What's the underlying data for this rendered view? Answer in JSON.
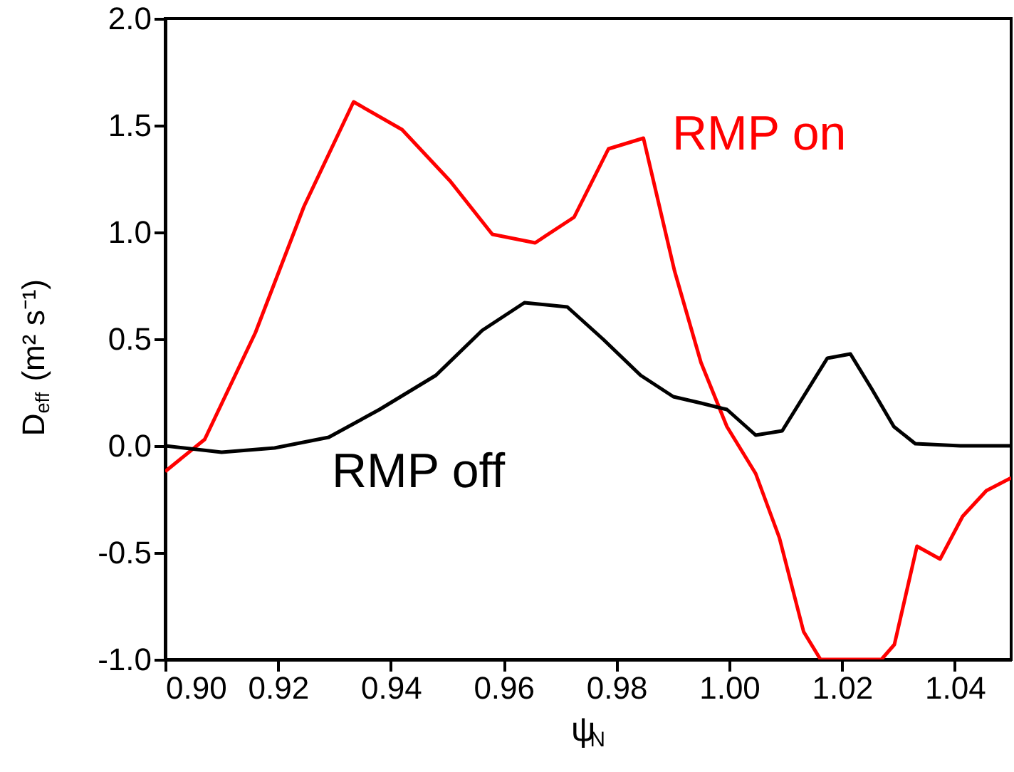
{
  "chart_data": {
    "type": "line",
    "xlabel": "ψ$_{N}$",
    "ylabel": "D$_{eff}$ (m² s⁻¹)",
    "xlim": [
      0.9,
      1.05
    ],
    "ylim": [
      -1.0,
      2.0
    ],
    "xticks": [
      {
        "value": 0.9,
        "label": "0.90"
      },
      {
        "value": 0.92,
        "label": "0.92"
      },
      {
        "value": 0.94,
        "label": "0.94"
      },
      {
        "value": 0.96,
        "label": "0.96"
      },
      {
        "value": 0.98,
        "label": "0.98"
      },
      {
        "value": 1.0,
        "label": "1.00"
      },
      {
        "value": 1.02,
        "label": "1.02"
      },
      {
        "value": 1.04,
        "label": "1.04"
      }
    ],
    "yticks": [
      {
        "value": -1.0,
        "label": "-1.0"
      },
      {
        "value": -0.5,
        "label": "-0.5"
      },
      {
        "value": 0.0,
        "label": "0.0"
      },
      {
        "value": 0.5,
        "label": "0.5"
      },
      {
        "value": 1.0,
        "label": "1.0"
      },
      {
        "value": 1.5,
        "label": "1.5"
      },
      {
        "value": 2.0,
        "label": "2.0"
      }
    ],
    "grid": false,
    "marker": "none",
    "line_style": "solid",
    "series": [
      {
        "color": "#ff0000",
        "x": [
          0.9,
          0.907,
          0.916,
          0.9246,
          0.9334,
          0.942,
          0.9505,
          0.958,
          0.9656,
          0.9725,
          0.9786,
          0.9848,
          0.9903,
          0.995,
          0.9996,
          1.0047,
          1.0089,
          1.0132,
          1.0162,
          1.027,
          1.0293,
          1.0333,
          1.0374,
          1.0414,
          1.0456,
          1.05
        ],
        "values": [
          -0.12,
          0.03,
          0.53,
          1.12,
          1.61,
          1.48,
          1.24,
          0.99,
          0.95,
          1.07,
          1.39,
          1.44,
          0.82,
          0.39,
          0.09,
          -0.13,
          -0.43,
          -0.87,
          -1.0,
          -1.0,
          -0.93,
          -0.47,
          -0.53,
          -0.33,
          -0.21,
          -0.15
        ]
      },
      {
        "color": "#000000",
        "x": [
          0.9,
          0.91,
          0.9194,
          0.929,
          0.938,
          0.948,
          0.9562,
          0.9637,
          0.9713,
          0.9776,
          0.9843,
          0.9901,
          0.995,
          0.9996,
          1.0047,
          1.0094,
          1.0174,
          1.0215,
          1.0252,
          1.0292,
          1.033,
          1.041,
          1.05
        ],
        "values": [
          0.0,
          -0.03,
          -0.01,
          0.04,
          0.17,
          0.33,
          0.54,
          0.67,
          0.65,
          0.5,
          0.33,
          0.23,
          0.2,
          0.17,
          0.05,
          0.07,
          0.41,
          0.43,
          0.27,
          0.09,
          0.01,
          0.0,
          0.0
        ]
      }
    ],
    "annotations": [
      "RMP on",
      "RMP off"
    ]
  }
}
